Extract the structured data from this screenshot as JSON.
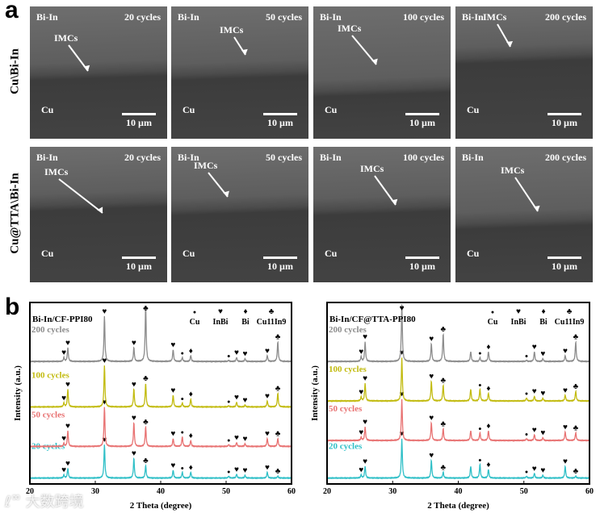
{
  "panel_a": {
    "label": "a",
    "row_labels": [
      "Cu\\Bi-In",
      "Cu@TTA\\Bi-In"
    ],
    "matrix_label": "Bi-In",
    "substrate_label": "Cu",
    "imc_label": "IMCs",
    "scale_bar": "10 µm",
    "cycles": [
      "20 cycles",
      "50 cycles",
      "100 cycles",
      "200 cycles"
    ]
  },
  "panel_b": {
    "label": "b"
  },
  "watermark": "大数跨境",
  "chart_data": [
    {
      "type": "line",
      "title": "Bi-In/CF-PPI80",
      "xlabel": "2 Theta (degree)",
      "ylabel": "Intensity (a.u.)",
      "xlim": [
        20,
        60
      ],
      "xticks": [
        20,
        30,
        40,
        50,
        60
      ],
      "legend": [
        {
          "symbol": "●",
          "label": "Cu"
        },
        {
          "symbol": "♥",
          "label": "InBi"
        },
        {
          "symbol": "♦",
          "label": "Bi"
        },
        {
          "symbol": "♣",
          "label": "Cu11In9"
        }
      ],
      "series": [
        {
          "name": "20 cycles",
          "color": "#2fbfc7",
          "offset": 0.15,
          "peaks": [
            [
              25.2,
              0.08
            ],
            [
              25.8,
              0.25
            ],
            [
              31.4,
              0.85
            ],
            [
              35.9,
              0.5
            ],
            [
              37.7,
              0.32
            ],
            [
              41.9,
              0.2
            ],
            [
              43.3,
              0.15
            ],
            [
              44.6,
              0.15
            ],
            [
              50.4,
              0.05
            ],
            [
              51.6,
              0.1
            ],
            [
              52.9,
              0.07
            ],
            [
              56.3,
              0.15
            ],
            [
              57.9,
              0.05
            ]
          ]
        },
        {
          "name": "50 cycles",
          "color": "#e87272",
          "offset": 0.95,
          "peaks": [
            [
              25.2,
              0.08
            ],
            [
              25.8,
              0.4
            ],
            [
              31.4,
              1.0
            ],
            [
              35.9,
              0.6
            ],
            [
              37.7,
              0.5
            ],
            [
              41.9,
              0.2
            ],
            [
              43.3,
              0.25
            ],
            [
              44.6,
              0.15
            ],
            [
              50.4,
              0.05
            ],
            [
              51.6,
              0.1
            ],
            [
              52.9,
              0.07
            ],
            [
              56.3,
              0.2
            ],
            [
              57.9,
              0.2
            ]
          ]
        },
        {
          "name": "100 cycles",
          "color": "#c2bb10",
          "offset": 1.95,
          "peaks": [
            [
              25.2,
              0.1
            ],
            [
              25.8,
              0.45
            ],
            [
              31.4,
              1.05
            ],
            [
              35.9,
              0.45
            ],
            [
              37.7,
              0.6
            ],
            [
              41.9,
              0.3
            ],
            [
              43.3,
              0.1
            ],
            [
              44.6,
              0.2
            ],
            [
              50.4,
              0.03
            ],
            [
              51.6,
              0.12
            ],
            [
              52.9,
              0.05
            ],
            [
              56.3,
              0.15
            ],
            [
              57.9,
              0.35
            ]
          ]
        },
        {
          "name": "200 cycles",
          "color": "#8c8c8c",
          "offset": 3.1,
          "peaks": [
            [
              25.2,
              0.1
            ],
            [
              25.8,
              0.35
            ],
            [
              31.4,
              1.15
            ],
            [
              35.9,
              0.35
            ],
            [
              37.7,
              1.45
            ],
            [
              41.9,
              0.3
            ],
            [
              43.3,
              0.1
            ],
            [
              44.6,
              0.15
            ],
            [
              50.4,
              0.03
            ],
            [
              51.6,
              0.1
            ],
            [
              52.9,
              0.07
            ],
            [
              56.3,
              0.15
            ],
            [
              57.9,
              0.5
            ]
          ]
        }
      ],
      "markers": [
        [
          25.2,
          "♥"
        ],
        [
          25.8,
          "♥"
        ],
        [
          31.4,
          "♥"
        ],
        [
          35.9,
          "♥"
        ],
        [
          37.7,
          "♣"
        ],
        [
          41.9,
          "♥"
        ],
        [
          43.3,
          "●"
        ],
        [
          44.6,
          "♦"
        ],
        [
          50.4,
          "●"
        ],
        [
          51.6,
          "♥"
        ],
        [
          52.9,
          "♥"
        ],
        [
          56.3,
          "♥"
        ],
        [
          57.9,
          "♣"
        ]
      ]
    },
    {
      "type": "line",
      "title": "Bi-In/CF@TTA-PPI80",
      "xlabel": "2 Theta (degree)",
      "ylabel": "Intensity (a.u.)",
      "xlim": [
        20,
        60
      ],
      "xticks": [
        20,
        30,
        40,
        50,
        60
      ],
      "legend": [
        {
          "symbol": "●",
          "label": "Cu"
        },
        {
          "symbol": "♥",
          "label": "InBi"
        },
        {
          "symbol": "♦",
          "label": "Bi"
        },
        {
          "symbol": "♣",
          "label": "Cu11In9"
        }
      ],
      "series": [
        {
          "name": "20 cycles",
          "color": "#2fbfc7",
          "offset": 0.15,
          "peaks": [
            [
              25.2,
              0.08
            ],
            [
              25.8,
              0.3
            ],
            [
              31.4,
              1.0
            ],
            [
              35.9,
              0.45
            ],
            [
              37.7,
              0.15
            ],
            [
              41.9,
              0.3
            ],
            [
              43.3,
              0.35
            ],
            [
              44.6,
              0.22
            ],
            [
              50.4,
              0.05
            ],
            [
              51.6,
              0.12
            ],
            [
              52.9,
              0.07
            ],
            [
              56.3,
              0.3
            ],
            [
              57.9,
              0.05
            ]
          ]
        },
        {
          "name": "50 cycles",
          "color": "#e87272",
          "offset": 1.1,
          "peaks": [
            [
              25.2,
              0.08
            ],
            [
              25.8,
              0.35
            ],
            [
              31.4,
              1.05
            ],
            [
              35.9,
              0.45
            ],
            [
              37.7,
              0.3
            ],
            [
              41.9,
              0.25
            ],
            [
              43.3,
              0.2
            ],
            [
              44.6,
              0.25
            ],
            [
              50.4,
              0.05
            ],
            [
              51.6,
              0.15
            ],
            [
              52.9,
              0.07
            ],
            [
              56.3,
              0.22
            ],
            [
              57.9,
              0.2
            ]
          ]
        },
        {
          "name": "100 cycles",
          "color": "#c2bb10",
          "offset": 2.1,
          "peaks": [
            [
              25.2,
              0.1
            ],
            [
              25.8,
              0.45
            ],
            [
              31.4,
              1.1
            ],
            [
              35.9,
              0.5
            ],
            [
              37.7,
              0.4
            ],
            [
              41.9,
              0.3
            ],
            [
              43.3,
              0.3
            ],
            [
              44.6,
              0.2
            ],
            [
              50.4,
              0.08
            ],
            [
              51.6,
              0.12
            ],
            [
              52.9,
              0.07
            ],
            [
              56.3,
              0.15
            ],
            [
              57.9,
              0.25
            ]
          ]
        },
        {
          "name": "200 cycles",
          "color": "#8c8c8c",
          "offset": 3.1,
          "peaks": [
            [
              25.2,
              0.12
            ],
            [
              25.8,
              0.5
            ],
            [
              31.4,
              1.45
            ],
            [
              35.9,
              0.45
            ],
            [
              37.7,
              0.7
            ],
            [
              41.9,
              0.25
            ],
            [
              43.3,
              0.1
            ],
            [
              44.6,
              0.25
            ],
            [
              50.4,
              0.03
            ],
            [
              51.6,
              0.25
            ],
            [
              52.9,
              0.07
            ],
            [
              56.3,
              0.15
            ],
            [
              57.9,
              0.5
            ]
          ]
        }
      ],
      "markers": [
        [
          25.2,
          "♥"
        ],
        [
          25.8,
          "♥"
        ],
        [
          31.4,
          "♥"
        ],
        [
          35.9,
          "♥"
        ],
        [
          37.7,
          "♣"
        ],
        [
          43.3,
          "●"
        ],
        [
          44.6,
          "♦"
        ],
        [
          50.4,
          "●"
        ],
        [
          51.6,
          "♥"
        ],
        [
          52.9,
          "♥"
        ],
        [
          56.3,
          "♥"
        ],
        [
          57.9,
          "♣"
        ]
      ]
    }
  ]
}
